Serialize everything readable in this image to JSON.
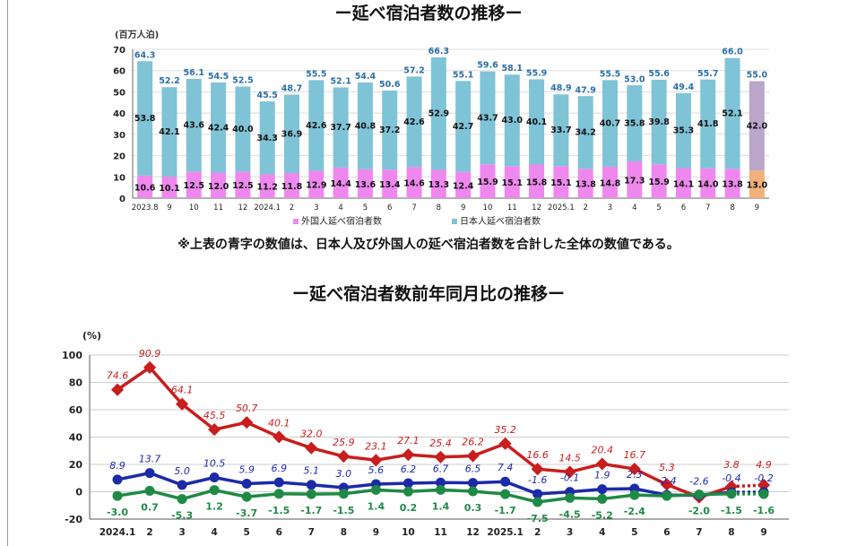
{
  "chart_data": [
    {
      "type": "bar",
      "stacked": true,
      "title": "ー延べ宿泊者数の推移ー",
      "ylabel": "(百万人泊)",
      "ylim": [
        0,
        70
      ],
      "yticks": [
        0,
        10,
        20,
        30,
        40,
        50,
        60,
        70
      ],
      "grid": true,
      "legend_placement": "bottom",
      "categories": [
        "2023.8",
        "9",
        "10",
        "11",
        "12",
        "2024.1",
        "2",
        "3",
        "4",
        "5",
        "6",
        "7",
        "8",
        "9",
        "10",
        "11",
        "12",
        "2025.1",
        "2",
        "3",
        "4",
        "5",
        "6",
        "7",
        "8",
        "9"
      ],
      "series": [
        {
          "name": "外国人延べ宿泊者数",
          "color": "#ee88ee",
          "values": [
            10.6,
            10.1,
            12.5,
            12.0,
            12.5,
            11.2,
            11.8,
            12.9,
            14.4,
            13.6,
            13.4,
            14.6,
            13.3,
            12.4,
            15.9,
            15.1,
            15.8,
            15.1,
            13.8,
            14.8,
            17.3,
            15.9,
            14.1,
            14.0,
            13.8,
            13.0
          ]
        },
        {
          "name": "日本人延べ宿泊者数",
          "color": "#7fc3d6",
          "values": [
            53.8,
            42.1,
            43.6,
            42.4,
            40.0,
            34.3,
            36.9,
            42.6,
            37.7,
            40.8,
            37.2,
            42.6,
            52.9,
            42.7,
            43.7,
            43.0,
            40.1,
            33.7,
            34.2,
            40.7,
            35.8,
            39.8,
            35.3,
            41.8,
            52.1,
            42.0
          ]
        }
      ],
      "totals": [
        64.3,
        52.2,
        56.1,
        54.5,
        52.5,
        45.5,
        48.7,
        55.5,
        52.1,
        54.4,
        50.6,
        57.2,
        66.3,
        55.1,
        59.6,
        58.1,
        55.9,
        48.9,
        47.9,
        55.5,
        53.0,
        55.6,
        49.4,
        55.7,
        66.0,
        55.0
      ],
      "last_bar_colors": {
        "foreign": "#f2b07a",
        "japanese": "#b9a6c9"
      },
      "total_label_color": "#2a6fa8",
      "note": "※上表の青字の数値は、日本人及び外国人の延べ宿泊者数を合計した全体の数値である。"
    },
    {
      "type": "line",
      "title": "ー延べ宿泊者数前年同月比の推移ー",
      "ylabel": "(%)",
      "ylim": [
        -20,
        100
      ],
      "yticks": [
        -20,
        0,
        20,
        40,
        60,
        80,
        100
      ],
      "grid": true,
      "categories": [
        "2024.1",
        "2",
        "3",
        "4",
        "5",
        "6",
        "7",
        "8",
        "9",
        "10",
        "11",
        "12",
        "2025.1",
        "2",
        "3",
        "4",
        "5",
        "6",
        "7",
        "8",
        "9"
      ],
      "preliminary_from_index": 19,
      "series": [
        {
          "color": "#c81e1e",
          "values": [
            74.6,
            90.9,
            64.1,
            45.5,
            50.7,
            40.1,
            32.0,
            25.9,
            23.1,
            27.1,
            25.4,
            26.2,
            35.2,
            16.6,
            14.5,
            20.4,
            16.7,
            5.3,
            -4.0,
            3.8,
            4.9
          ],
          "labels": [
            "74.6",
            "90.9",
            "64.1",
            "45.5",
            "50.7",
            "40.1",
            "32.0",
            "25.9",
            "23.1",
            "27.1",
            "25.4",
            "26.2",
            "35.2",
            "16.6",
            "14.5",
            "20.4",
            "16.7",
            "5.3",
            "",
            "3.8",
            "4.9"
          ]
        },
        {
          "color": "#1c2aa8",
          "values": [
            8.9,
            13.7,
            5.0,
            10.5,
            5.9,
            6.9,
            5.1,
            3.0,
            5.6,
            6.2,
            6.7,
            6.5,
            7.4,
            -1.6,
            -0.1,
            1.9,
            2.3,
            -2.4,
            -2.6,
            -0.4,
            -0.2
          ],
          "labels": [
            "8.9",
            "13.7",
            "5.0",
            "10.5",
            "5.9",
            "6.9",
            "5.1",
            "3.0",
            "5.6",
            "6.2",
            "6.7",
            "6.5",
            "7.4",
            "-1.6",
            "-0.1",
            "1.9",
            "2.3",
            "-2.4",
            "-2.6",
            "-0.4",
            "-0.2"
          ]
        },
        {
          "color": "#1f8a45",
          "values": [
            -3.0,
            0.7,
            -5.3,
            1.2,
            -3.7,
            -1.5,
            -1.7,
            -1.5,
            1.4,
            0.2,
            1.4,
            0.3,
            -1.7,
            -7.5,
            -4.5,
            -5.2,
            -2.4,
            -3.0,
            -2.0,
            -1.5,
            -1.6
          ],
          "labels": [
            "-3.0",
            "0.7",
            "-5.3",
            "1.2",
            "-3.7",
            "-1.5",
            "-1.7",
            "-1.5",
            "1.4",
            "0.2",
            "1.4",
            "0.3",
            "-1.7",
            "-7.5",
            "-4.5",
            "-5.2",
            "-2.4",
            "",
            "-2.0",
            "-1.5",
            "-1.6"
          ]
        }
      ]
    }
  ]
}
